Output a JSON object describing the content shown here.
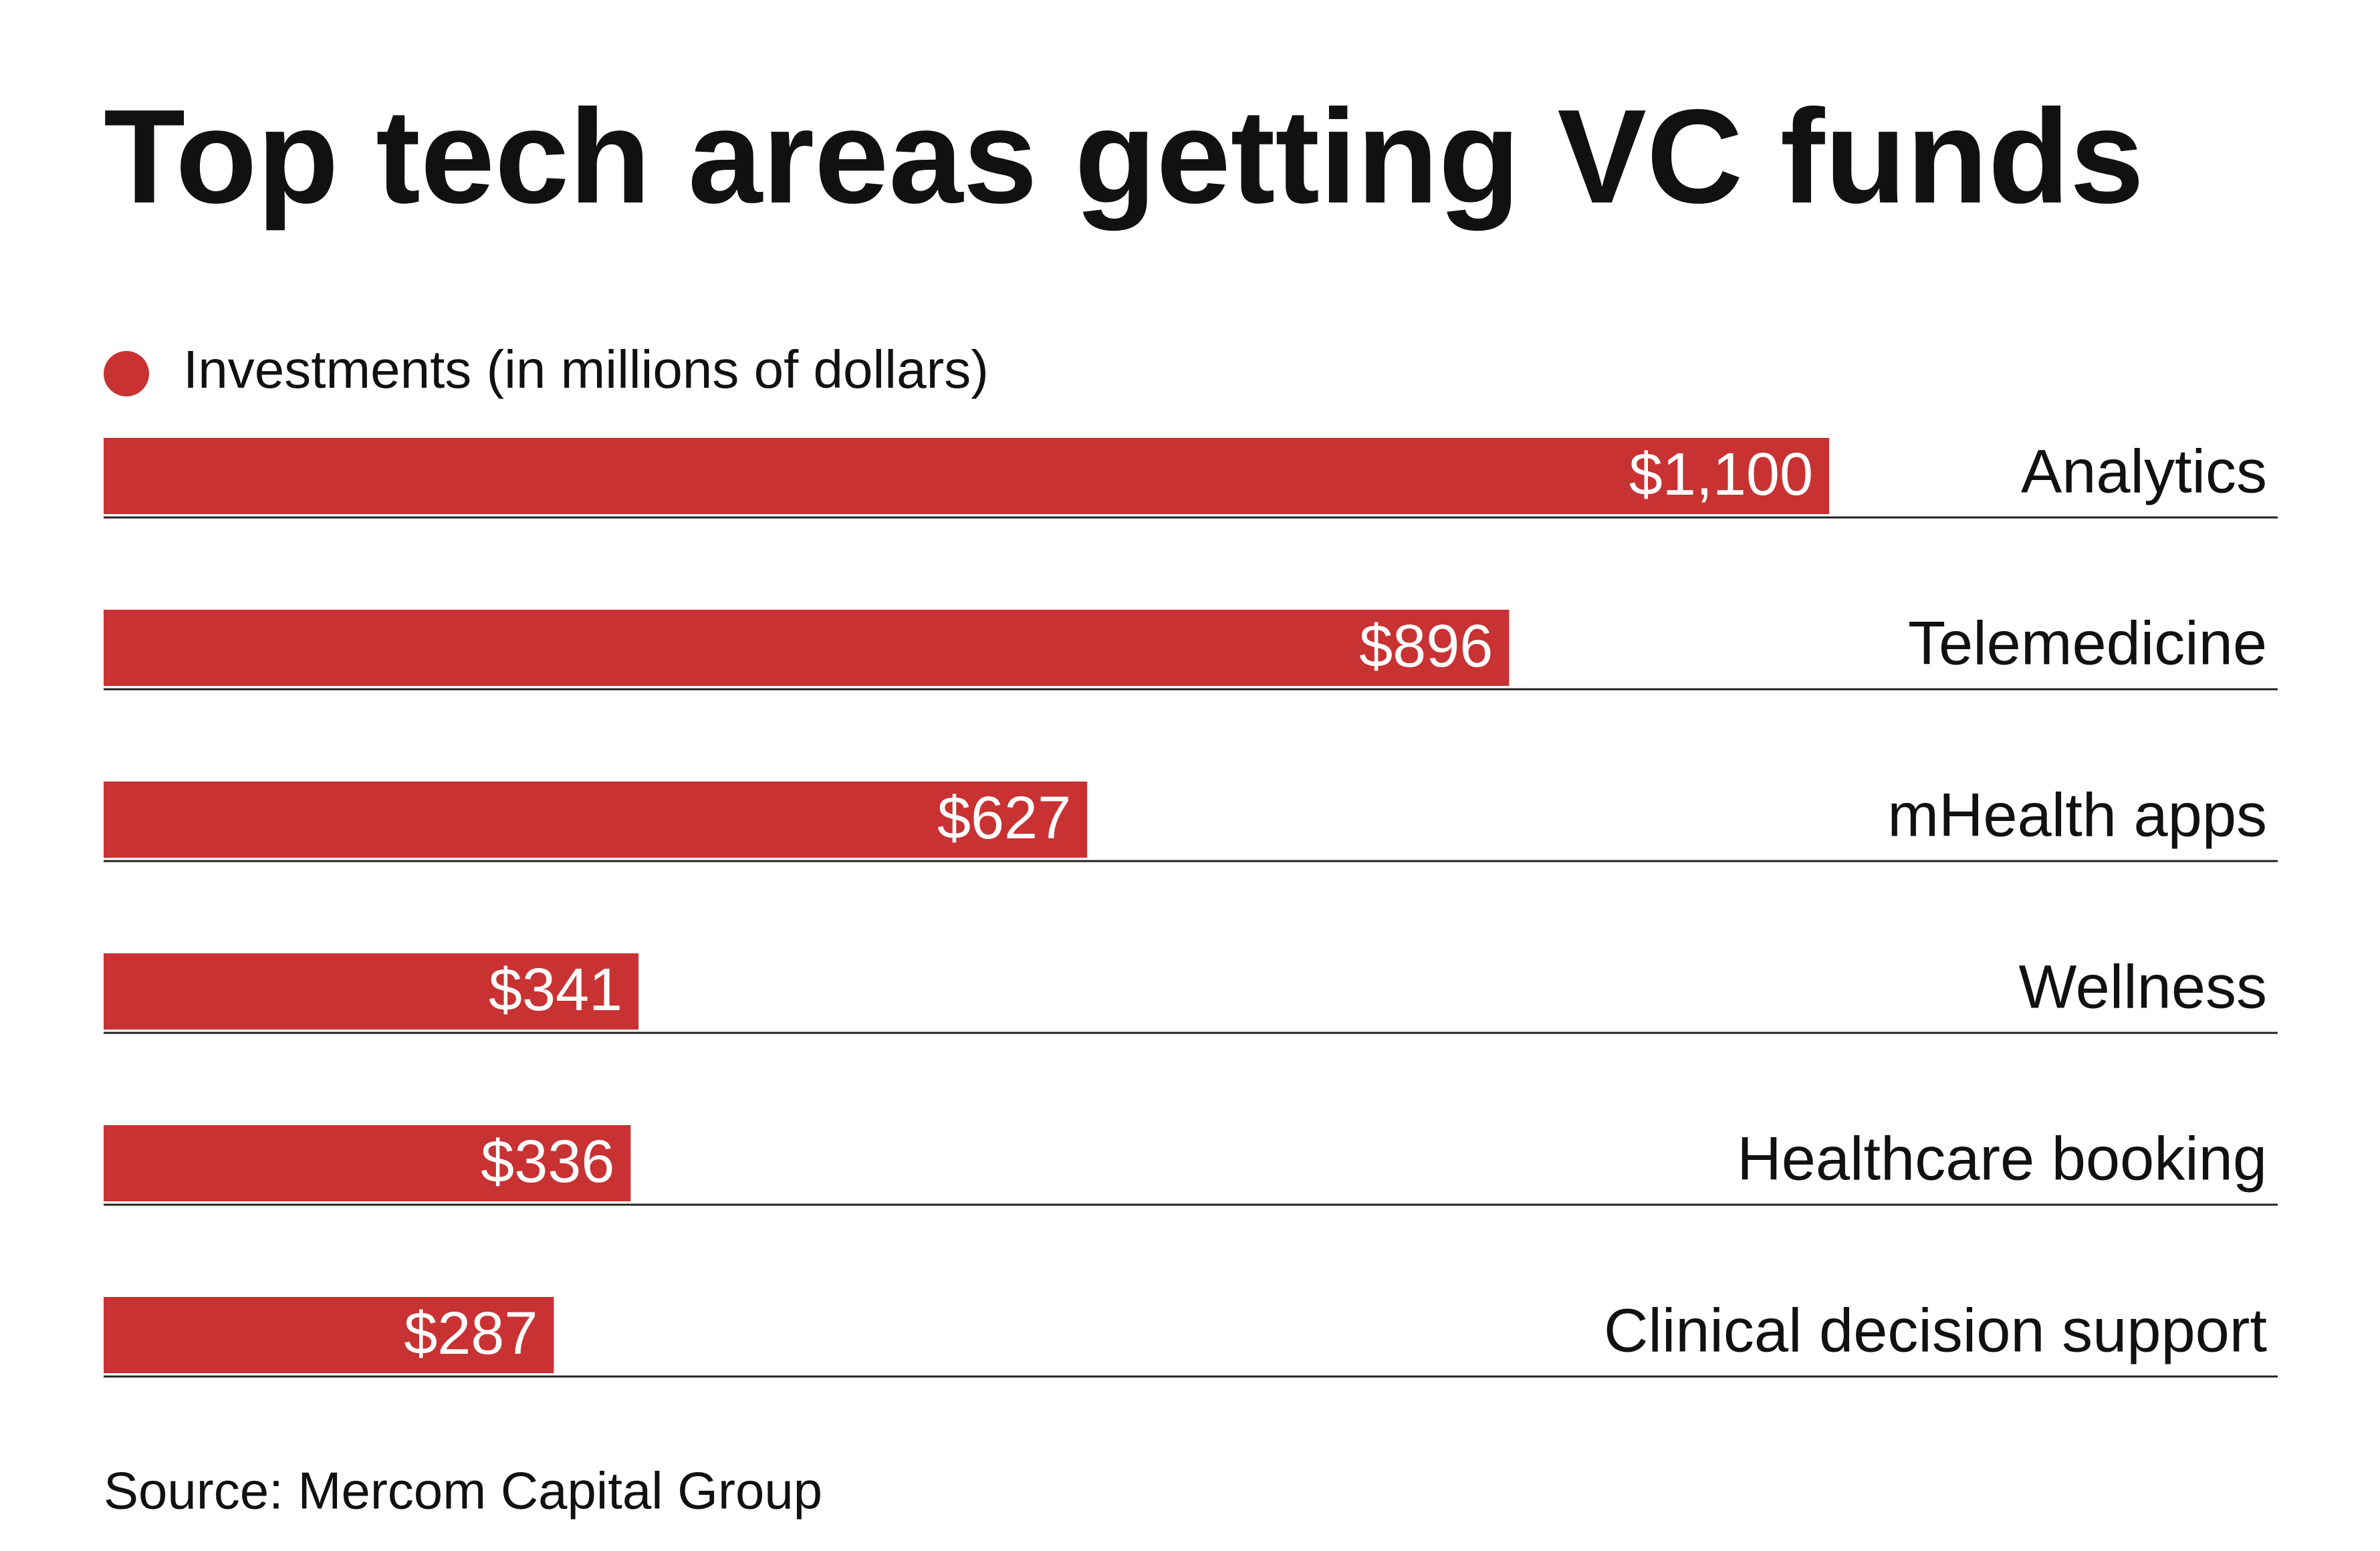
{
  "chart_data": {
    "type": "bar",
    "orientation": "horizontal",
    "title": "Top tech areas getting VC funds",
    "source": "Source: Mercom Capital Group",
    "categories": [
      "Analytics",
      "Telemedicine",
      "mHealth apps",
      "Wellness",
      "Healthcare booking",
      "Clinical decision support"
    ],
    "series": [
      {
        "name": "Investments (in millions of dollars)",
        "color": "#c83232",
        "values": [
          1100,
          896,
          627,
          341,
          336,
          287
        ],
        "value_labels": [
          "$1,100",
          "$896",
          "$627",
          "$341",
          "$336",
          "$287"
        ]
      }
    ]
  }
}
